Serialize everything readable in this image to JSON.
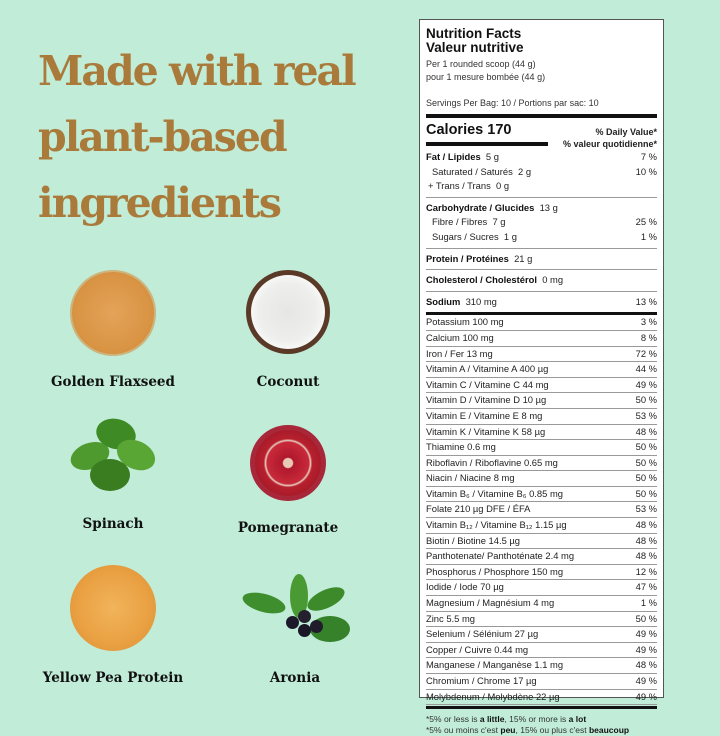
{
  "headline": [
    "Made with real",
    "plant-based",
    "ingredients"
  ],
  "colors": {
    "background": "#c0ecd8",
    "headline": "#a97a3a"
  },
  "ingredients": [
    {
      "label": "Golden Flaxseed",
      "icon": "flaxseed-pile"
    },
    {
      "label": "Coconut",
      "icon": "coconut-half"
    },
    {
      "label": "Spinach",
      "icon": "spinach-leaves"
    },
    {
      "label": "Pomegranate",
      "icon": "pomegranate-half"
    },
    {
      "label": "Yellow Pea Protein",
      "icon": "yellow-pea-pile"
    },
    {
      "label": "Aronia",
      "icon": "aronia-berries"
    }
  ],
  "nutrition": {
    "title_en": "Nutrition Facts",
    "title_fr": "Valeur nutritive",
    "per_en": "Per 1 rounded scoop (44 g)",
    "per_fr": "pour 1 mesure bombée (44 g)",
    "servings": "Servings Per Bag: 10 / Portions par sac: 10",
    "calories": "Calories 170",
    "dv_en": "% Daily Value*",
    "dv_fr": "% valeur quotidienne*",
    "fat": {
      "name": "Fat / Lipides",
      "amount": "5 g",
      "dv": "7 %"
    },
    "saturated": {
      "name": "Saturated / Saturés",
      "amount": "2 g",
      "dv": "10 %"
    },
    "trans": {
      "name": "+ Trans / Trans",
      "amount": "0 g"
    },
    "carb": {
      "name": "Carbohydrate / Glucides",
      "amount": "13 g"
    },
    "fibre": {
      "name": "Fibre / Fibres",
      "amount": "7 g",
      "dv": "25 %"
    },
    "sugars": {
      "name": "Sugars / Sucres",
      "amount": "1 g",
      "dv": "1 %"
    },
    "protein": {
      "name": "Protein / Protéines",
      "amount": "21 g"
    },
    "cholesterol": {
      "name": "Cholesterol / Cholestérol",
      "amount": "0 mg"
    },
    "sodium": {
      "name": "Sodium",
      "amount": "310 mg",
      "dv": "13 %"
    },
    "micros": [
      {
        "name": "Potassium  100 mg",
        "dv": "3 %"
      },
      {
        "name": "Calcium  100 mg",
        "dv": "8 %"
      },
      {
        "name": "Iron / Fer  13 mg",
        "dv": "72 %"
      },
      {
        "name": "Vitamin A / Vitamine A  400 µg",
        "dv": "44 %"
      },
      {
        "name": "Vitamin C / Vitamine C  44 mg",
        "dv": "49 %"
      },
      {
        "name": "Vitamin D / Vitamine D  10 µg",
        "dv": "50 %"
      },
      {
        "name": "Vitamin E / Vitamine E  8 mg",
        "dv": "53 %"
      },
      {
        "name": "Vitamin K / Vitamine K 58 µg",
        "dv": "48 %"
      },
      {
        "name": "Thiamine  0.6 mg",
        "dv": "50 %"
      },
      {
        "name": "Riboflavin / Riboflavine  0.65 mg",
        "dv": "50 %"
      },
      {
        "name": "Niacin / Niacine 8 mg",
        "dv": "50 %"
      },
      {
        "name": "Vitamin B₆ / Vitamine B₆  0.85 mg",
        "dv": "50 %"
      },
      {
        "name": "Folate 210 µg DFE / ÉFA",
        "dv": "53 %"
      },
      {
        "name": "Vitamin B₁₂ / Vitamine B₁₂  1.15 µg",
        "dv": "48 %"
      },
      {
        "name": "Biotin / Biotine  14.5 µg",
        "dv": "48 %"
      },
      {
        "name": "Panthotenate/ Panthoténate  2.4 mg",
        "dv": "48 %"
      },
      {
        "name": "Phosphorus / Phosphore  150 mg",
        "dv": "12 %"
      },
      {
        "name": "Iodide / Iode  70 µg",
        "dv": "47 %"
      },
      {
        "name": "Magnesium / Magnésium  4 mg",
        "dv": "1 %"
      },
      {
        "name": "Zinc 5.5 mg",
        "dv": "50 %"
      },
      {
        "name": "Selenium / Sélénium  27 µg",
        "dv": "49 %"
      },
      {
        "name": "Copper / Cuivre  0.44 mg",
        "dv": "49 %"
      },
      {
        "name": "Manganese / Manganèse  1.1 mg",
        "dv": "48 %"
      },
      {
        "name": "Chromium / Chrome  17 µg",
        "dv": "49 %"
      },
      {
        "name": "Molybdenum / Molybdène  22 µg",
        "dv": "49 %"
      }
    ],
    "footnote_en": {
      "a": "*5% or less is ",
      "b": "a little",
      "c": ", 15% or more is ",
      "d": "a lot"
    },
    "footnote_fr": {
      "a": "*5% ou moins c'est ",
      "b": "peu",
      "c": ", 15% ou plus c'est ",
      "d": "beaucoup"
    }
  }
}
